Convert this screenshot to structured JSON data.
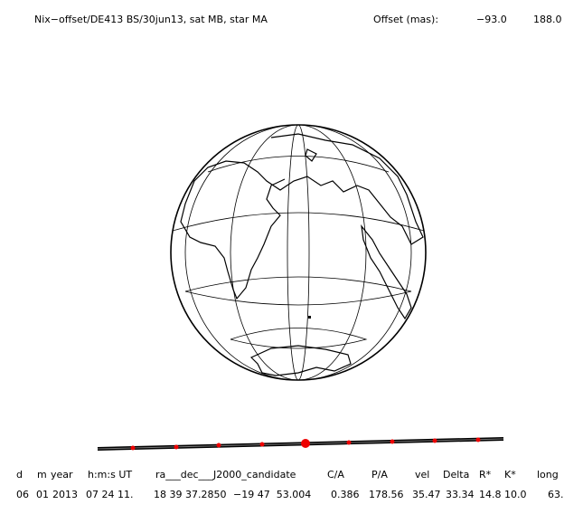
{
  "header": {
    "title": "Nix−offset/DE413 BS/30jun13, sat MB, star MA",
    "offset_label": "Offset (mas):",
    "offset_values": [
      "−93.0",
      "188.0"
    ]
  },
  "table": {
    "columns": [
      "d",
      "m",
      "year",
      "h:m:s UT",
      "ra___dec___J2000_candidate",
      "C/A",
      "P/A",
      "vel",
      "Delta",
      "R*",
      "K*",
      "long"
    ],
    "rows": [
      [
        "06",
        "01",
        "2013",
        "07 24 11.",
        "18 39 37.2850",
        "−19 47  53.004",
        "0.386",
        "178.56",
        "35.47",
        "33.34",
        "14.8",
        "10.0",
        "63."
      ]
    ]
  }
}
